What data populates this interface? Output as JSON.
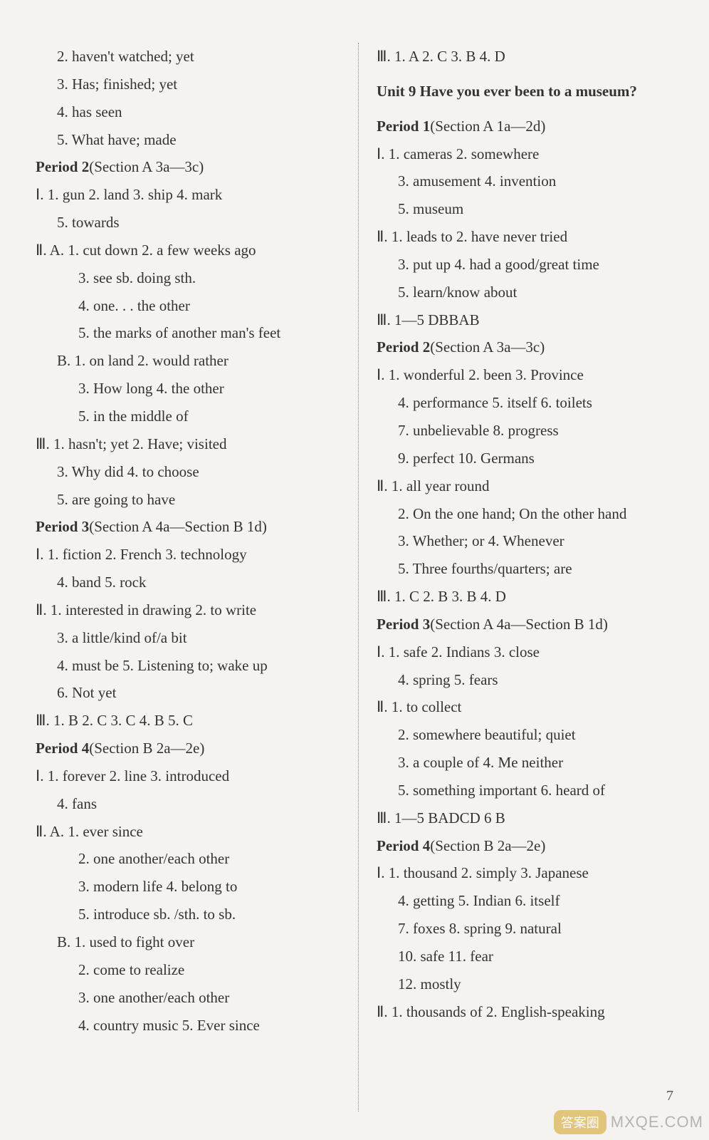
{
  "left": [
    {
      "indent": 1,
      "text": "2. haven't watched; yet"
    },
    {
      "indent": 1,
      "text": "3. Has; finished; yet"
    },
    {
      "indent": 1,
      "text": "4. has seen"
    },
    {
      "indent": 1,
      "text": "5. What have; made"
    },
    {
      "indent": 0,
      "bold": true,
      "text": "Period 2",
      "tail": "(Section A 3a—3c)"
    },
    {
      "indent": 0,
      "text": "Ⅰ. 1. gun  2. land  3. ship  4. mark"
    },
    {
      "indent": 1,
      "text": "5. towards"
    },
    {
      "indent": 0,
      "text": "Ⅱ. A. 1. cut down  2. a few weeks ago"
    },
    {
      "indent": 2,
      "text": "3. see sb. doing sth."
    },
    {
      "indent": 2,
      "text": "4. one. . . the other"
    },
    {
      "indent": 2,
      "text": "5. the marks of another man's feet"
    },
    {
      "indent": 1,
      "text": "B. 1. on land  2. would rather"
    },
    {
      "indent": 2,
      "text": "3. How long  4. the other"
    },
    {
      "indent": 2,
      "text": "5. in the middle of"
    },
    {
      "indent": 0,
      "text": "Ⅲ. 1. hasn't; yet  2. Have; visited"
    },
    {
      "indent": 1,
      "text": "3. Why did  4. to choose"
    },
    {
      "indent": 1,
      "text": "5. are going to have"
    },
    {
      "indent": 0,
      "bold": true,
      "text": "Period 3",
      "tail": "(Section A 4a—Section B 1d)"
    },
    {
      "indent": 0,
      "text": "Ⅰ. 1. fiction  2. French  3. technology"
    },
    {
      "indent": 1,
      "text": "4. band  5. rock"
    },
    {
      "indent": 0,
      "text": "Ⅱ. 1. interested in drawing  2. to write"
    },
    {
      "indent": 1,
      "text": "3. a little/kind of/a bit"
    },
    {
      "indent": 1,
      "text": "4. must be  5. Listening to; wake up"
    },
    {
      "indent": 1,
      "text": "6. Not yet"
    },
    {
      "indent": 0,
      "text": "Ⅲ. 1. B  2. C  3. C  4. B  5. C"
    },
    {
      "indent": 0,
      "bold": true,
      "text": "Period 4",
      "tail": "(Section B 2a—2e)"
    },
    {
      "indent": 0,
      "text": "Ⅰ. 1. forever  2. line  3. introduced"
    },
    {
      "indent": 1,
      "text": "4. fans"
    },
    {
      "indent": 0,
      "text": "Ⅱ. A. 1. ever since"
    },
    {
      "indent": 2,
      "text": "2. one another/each other"
    },
    {
      "indent": 2,
      "text": "3. modern life  4. belong to"
    },
    {
      "indent": 2,
      "text": "5. introduce sb. /sth. to sb."
    },
    {
      "indent": 1,
      "text": "B. 1. used to fight over"
    },
    {
      "indent": 2,
      "text": "2. come to realize"
    },
    {
      "indent": 2,
      "text": "3. one another/each other"
    },
    {
      "indent": 2,
      "text": "4. country music  5. Ever since"
    }
  ],
  "right": [
    {
      "indent": 0,
      "text": "Ⅲ. 1. A  2. C  3. B  4. D"
    },
    {
      "indent": 0,
      "unitTitle": true,
      "text": "Unit 9  Have you ever been to a museum?"
    },
    {
      "indent": 0,
      "bold": true,
      "text": "Period 1",
      "tail": "(Section A 1a—2d)"
    },
    {
      "indent": 0,
      "text": "Ⅰ. 1. cameras  2. somewhere"
    },
    {
      "indent": 1,
      "text": "3. amusement  4. invention"
    },
    {
      "indent": 1,
      "text": "5. museum"
    },
    {
      "indent": 0,
      "text": "Ⅱ. 1. leads to  2. have never tried"
    },
    {
      "indent": 1,
      "text": "3. put up  4. had a good/great time"
    },
    {
      "indent": 1,
      "text": "5. learn/know about"
    },
    {
      "indent": 0,
      "text": "Ⅲ. 1—5 DBBAB"
    },
    {
      "indent": 0,
      "bold": true,
      "text": "Period 2",
      "tail": "(Section A 3a—3c)"
    },
    {
      "indent": 0,
      "text": "Ⅰ. 1. wonderful  2. been  3. Province"
    },
    {
      "indent": 1,
      "text": "4. performance  5. itself  6. toilets"
    },
    {
      "indent": 1,
      "text": "7. unbelievable  8. progress"
    },
    {
      "indent": 1,
      "text": "9. perfect  10. Germans"
    },
    {
      "indent": 0,
      "text": "Ⅱ. 1. all year round"
    },
    {
      "indent": 1,
      "text": "2. On the one hand; On the other hand"
    },
    {
      "indent": 1,
      "text": "3. Whether; or  4. Whenever"
    },
    {
      "indent": 1,
      "text": "5. Three fourths/quarters; are"
    },
    {
      "indent": 0,
      "text": "Ⅲ. 1. C  2. B  3. B  4. D"
    },
    {
      "indent": 0,
      "bold": true,
      "text": "Period 3",
      "tail": "(Section A 4a—Section B 1d)"
    },
    {
      "indent": 0,
      "text": "Ⅰ. 1. safe  2. Indians  3. close"
    },
    {
      "indent": 1,
      "text": "4. spring  5. fears"
    },
    {
      "indent": 0,
      "text": "Ⅱ. 1. to collect"
    },
    {
      "indent": 1,
      "text": "2. somewhere beautiful; quiet"
    },
    {
      "indent": 1,
      "text": "3. a couple of  4. Me neither"
    },
    {
      "indent": 1,
      "text": "5. something important  6. heard of"
    },
    {
      "indent": 0,
      "text": "Ⅲ. 1—5 BADCD  6 B"
    },
    {
      "indent": 0,
      "bold": true,
      "text": "Period 4",
      "tail": "(Section B 2a—2e)"
    },
    {
      "indent": 0,
      "text": "Ⅰ. 1. thousand  2. simply  3. Japanese"
    },
    {
      "indent": 1,
      "text": "4. getting  5. Indian  6. itself"
    },
    {
      "indent": 1,
      "text": "7. foxes  8. spring  9. natural"
    },
    {
      "indent": 1,
      "text": "10. safe  11. fear"
    },
    {
      "indent": 1,
      "text": "12. mostly"
    },
    {
      "indent": 0,
      "text": "Ⅱ. 1. thousands of  2. English-speaking"
    }
  ],
  "pageNumber": "7",
  "watermark": {
    "badge": "答案圈",
    "text": "MXQE.COM"
  },
  "overlayHints": [
    "zyjL.cn",
    "zyjL.cn"
  ]
}
